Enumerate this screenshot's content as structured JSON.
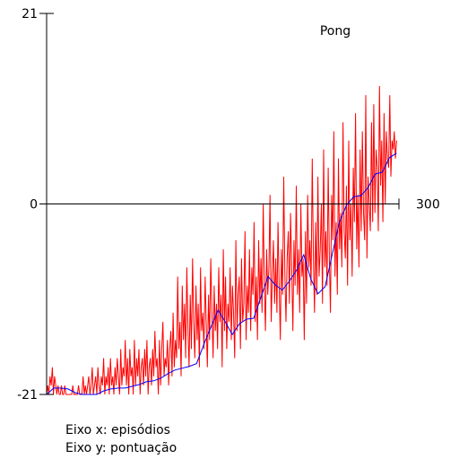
{
  "chart_data": {
    "type": "line",
    "title": "Pong",
    "xlim": [
      0,
      300
    ],
    "ylim": [
      -21,
      21
    ],
    "x_ticks_printed": [
      "300"
    ],
    "y_ticks_printed": [
      "21",
      "0",
      "-21"
    ],
    "grid": false,
    "colors": {
      "raw": "#ff0000",
      "avg": "#0000ff",
      "axes": "#000000"
    },
    "series": [
      {
        "key": "raw",
        "values": [
          -21,
          -20,
          -21,
          -19,
          -20,
          -18,
          -21,
          -19,
          -20,
          -21,
          -20,
          -21,
          -21,
          -20,
          -21,
          -21,
          -20,
          -21,
          -21,
          -21,
          -21,
          -21,
          -21,
          -20,
          -21,
          -21,
          -21,
          -21,
          -20,
          -21,
          -21,
          -21,
          -19,
          -21,
          -20,
          -21,
          -20,
          -19,
          -21,
          -20,
          -18,
          -21,
          -20,
          -19,
          -21,
          -18,
          -20,
          -21,
          -19,
          -20,
          -17,
          -21,
          -19,
          -20,
          -18,
          -21,
          -17,
          -20,
          -19,
          -21,
          -18,
          -20,
          -17,
          -19,
          -21,
          -16,
          -20,
          -18,
          -19,
          -15,
          -20,
          -17,
          -21,
          -16,
          -19,
          -18,
          -21,
          -15,
          -20,
          -17,
          -19,
          -16,
          -21,
          -18,
          -17,
          -20,
          -16,
          -19,
          -15,
          -21,
          -18,
          -17,
          -20,
          -16,
          -19,
          -14,
          -18,
          -17,
          -21,
          -15,
          -20,
          -16,
          -13,
          -19,
          -17,
          -18,
          -15,
          -20,
          -16,
          -14,
          -19,
          -12,
          -18,
          -15,
          -17,
          -8,
          -16,
          -13,
          -19,
          -9,
          -15,
          -11,
          -17,
          -7,
          -14,
          -18,
          -10,
          -16,
          -6,
          -13,
          -17,
          -9,
          -15,
          -11,
          -18,
          -7,
          -14,
          -12,
          -16,
          -8,
          -13,
          -18,
          -10,
          -15,
          -6,
          -12,
          -17,
          -9,
          -14,
          -11,
          -16,
          -7,
          -13,
          -10,
          -18,
          -5,
          -14,
          -8,
          -16,
          -11,
          -13,
          -7,
          -15,
          -9,
          -12,
          -17,
          -4,
          -14,
          -10,
          -8,
          -16,
          -6,
          -13,
          -11,
          -3,
          -15,
          -9,
          -12,
          -5,
          -14,
          -7,
          -10,
          -2,
          -13,
          -8,
          -15,
          -4,
          -11,
          -6,
          -12,
          0,
          -9,
          -14,
          -5,
          -10,
          -7,
          1,
          -13,
          -8,
          -4,
          -11,
          -6,
          -12,
          -2,
          -9,
          -15,
          -5,
          -10,
          3,
          -8,
          -13,
          -6,
          -3,
          -11,
          -1,
          -7,
          -14,
          -4,
          -9,
          2,
          -10,
          -5,
          -12,
          0,
          -8,
          -6,
          -15,
          -3,
          -11,
          1,
          -7,
          -4,
          -9,
          5,
          -6,
          -12,
          -2,
          -10,
          3,
          -8,
          -5,
          0,
          -11,
          6,
          -7,
          -3,
          -9,
          4,
          -6,
          -12,
          1,
          -4,
          8,
          -8,
          -2,
          -10,
          5,
          -5,
          -1,
          -7,
          9,
          -3,
          -6,
          2,
          -9,
          7,
          -4,
          0,
          -8,
          4,
          -2,
          10,
          -5,
          1,
          -7,
          6,
          -3,
          8,
          -1,
          -4,
          12,
          -6,
          3,
          0,
          -3,
          9,
          -2,
          11,
          -1,
          6,
          4,
          -3,
          13,
          2,
          7,
          -2,
          10,
          0,
          8,
          5,
          4,
          12,
          3,
          7,
          6,
          8,
          5,
          7
        ]
      },
      {
        "key": "avg",
        "values": [
          -21,
          -20.3,
          -20.3,
          -20.4,
          -20.8,
          -21,
          -21,
          -21,
          -20.6,
          -20.4,
          -20.3,
          -20.3,
          -20.1,
          -19.9,
          -19.6,
          -19.5,
          -19.2,
          -18.7,
          -18.3,
          -18.1,
          -17.9,
          -17.6,
          -15.5,
          -13.6,
          -11.7,
          -13,
          -14.4,
          -13.2,
          -12.7,
          -12.6,
          -10.3,
          -8,
          -8.9,
          -9.5,
          -8.5,
          -7.3,
          -5.6,
          -8.3,
          -9.9,
          -9.1,
          -5.5,
          -2,
          -0.1,
          0.8,
          0.9,
          1.8,
          3.3,
          3.5,
          5.1,
          5.6
        ]
      }
    ]
  },
  "captions": [
    "Eixo x: episódios",
    "Eixo y: pontuação"
  ]
}
